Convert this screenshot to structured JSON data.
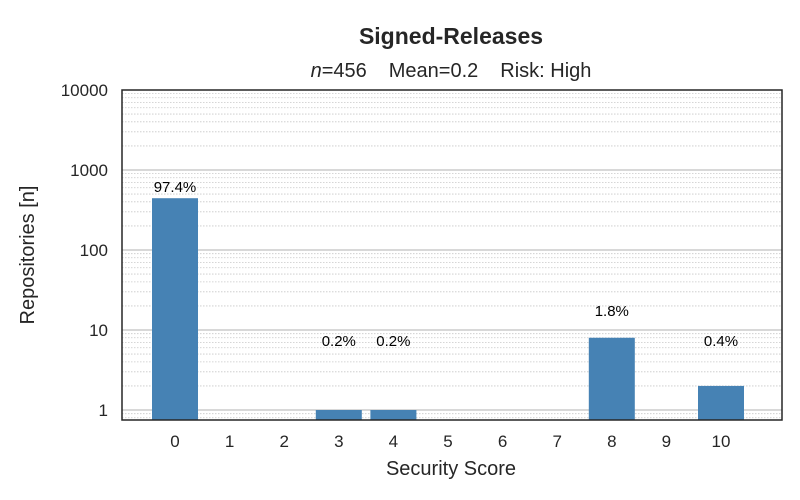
{
  "colors": {
    "bar": "#4682b4",
    "axis": "#262626",
    "major_grid": "#b0b0b0",
    "minor_grid": "#c8c8c8",
    "text": "#262626"
  },
  "chart_data": {
    "type": "bar",
    "title": "Signed-Releases",
    "subtitle": {
      "n_symbol": "n",
      "n_value": "=456",
      "mean": "Mean=0.2",
      "risk": "Risk: High"
    },
    "xlabel": "Security Score",
    "ylabel": "Repositories [n]",
    "y_scale": "log",
    "ylim": [
      0.75,
      10000
    ],
    "y_ticks": [
      1,
      10,
      100,
      1000,
      10000
    ],
    "y_tick_labels": [
      "1",
      "10",
      "100",
      "1000",
      "10000"
    ],
    "grid": "y major and minor",
    "categories": [
      "0",
      "1",
      "2",
      "3",
      "4",
      "5",
      "6",
      "7",
      "8",
      "9",
      "10"
    ],
    "values": [
      444,
      0,
      0,
      1,
      1,
      0,
      0,
      0,
      8,
      0,
      2
    ],
    "labels": [
      "97.4%",
      "",
      "",
      "0.2%",
      "0.2%",
      "",
      "",
      "",
      "1.8%",
      "",
      "0.4%"
    ]
  }
}
